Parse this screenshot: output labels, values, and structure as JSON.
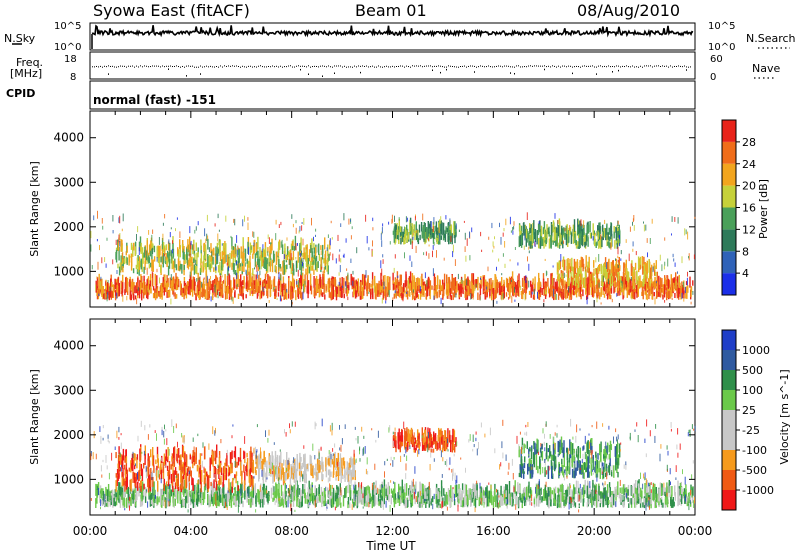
{
  "header": {
    "site": "Syowa East (fitACF)",
    "beam": "Beam 01",
    "date": "08/Aug/2010"
  },
  "top_panels": {
    "nsky_label": "N.Sky",
    "nsky_ticks": [
      "10^5",
      "10^0"
    ],
    "nsearch_label": "N.Search",
    "nsearch_ticks": [
      "10^5",
      "10^0"
    ],
    "freq_label_1": "Freq.",
    "freq_label_2": "[MHz]",
    "freq_ticks": [
      "18",
      "8"
    ],
    "nave_label": "Nave",
    "nave_ticks": [
      "60",
      "0"
    ],
    "cpid_label": "CPID",
    "cpid_value": "normal (fast) -151"
  },
  "colors": {
    "power": [
      "#1b2fe8",
      "#2f62b8",
      "#2e7a5a",
      "#4aa05a",
      "#c6d13a",
      "#f2a51e",
      "#f06d1a",
      "#e8231a"
    ],
    "velocity": [
      "#f01818",
      "#f05a14",
      "#f59a1c",
      "#c8c8c8",
      "#c8c8c8",
      "#6bc94a",
      "#2f8f4a",
      "#2f5aa0",
      "#1f3ec8"
    ]
  },
  "chart_data": [
    {
      "type": "heatmap",
      "name": "power",
      "title": "",
      "ylabel": "Slant Range [km]",
      "xlabel": "",
      "ylim": [
        200,
        4600
      ],
      "xlim": [
        0,
        24
      ],
      "y_ticks": [
        "4000",
        "3000",
        "2000",
        "1000"
      ],
      "y_tick_values": [
        4000,
        3000,
        2000,
        1000
      ],
      "x_ticks": [
        "00:00",
        "04:00",
        "08:00",
        "12:00",
        "16:00",
        "20:00",
        "00:00"
      ],
      "colorbar_label": "Power [dB]",
      "colorbar_ticks": [
        "28",
        "24",
        "20",
        "16",
        "12",
        "8",
        "4"
      ],
      "echo_bands": [
        {
          "t0": 0.2,
          "t1": 23.9,
          "r0": 350,
          "r1": 700,
          "level": 6
        },
        {
          "t0": 1.0,
          "t1": 9.5,
          "r0": 900,
          "r1": 1500,
          "level": 4
        },
        {
          "t0": 12.0,
          "t1": 14.5,
          "r0": 1600,
          "r1": 1900,
          "level": 3
        },
        {
          "t0": 17.0,
          "t1": 21.0,
          "r0": 1500,
          "r1": 1900,
          "level": 3
        },
        {
          "t0": 18.5,
          "t1": 22.5,
          "r0": 600,
          "r1": 1100,
          "level": 5
        }
      ]
    },
    {
      "type": "heatmap",
      "name": "velocity",
      "title": "",
      "ylabel": "Slant Range [km]",
      "xlabel": "Time UT",
      "ylim": [
        200,
        4600
      ],
      "xlim": [
        0,
        24
      ],
      "y_ticks": [
        "4000",
        "3000",
        "2000",
        "1000"
      ],
      "y_tick_values": [
        4000,
        3000,
        2000,
        1000
      ],
      "x_ticks": [
        "00:00",
        "04:00",
        "08:00",
        "12:00",
        "16:00",
        "20:00",
        "00:00"
      ],
      "colorbar_label": "Velocity [m s^-1]",
      "colorbar_ticks": [
        "1000",
        "500",
        "100",
        "25",
        "-25",
        "-100",
        "-500",
        "-1000"
      ],
      "echo_bands": [
        {
          "t0": 0.2,
          "t1": 23.9,
          "r0": 350,
          "r1": 700,
          "level": 5
        },
        {
          "t0": 1.0,
          "t1": 6.5,
          "r0": 700,
          "r1": 1500,
          "level": 1
        },
        {
          "t0": 6.5,
          "t1": 10.5,
          "r0": 900,
          "r1": 1400,
          "level": 3
        },
        {
          "t0": 12.0,
          "t1": 14.5,
          "r0": 1600,
          "r1": 1900,
          "level": 1
        },
        {
          "t0": 17.0,
          "t1": 21.0,
          "r0": 1000,
          "r1": 1700,
          "level": 6
        }
      ]
    }
  ]
}
